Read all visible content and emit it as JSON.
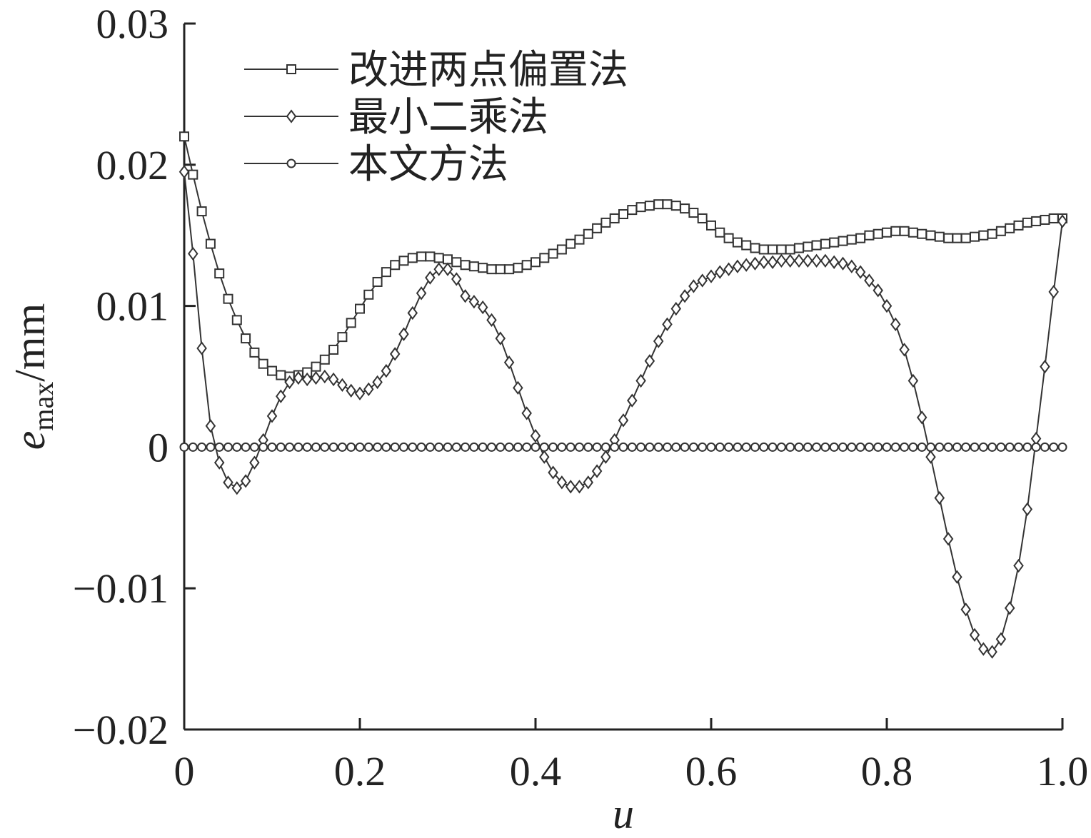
{
  "chart_data": {
    "type": "line",
    "xlabel": "u",
    "ylabel": "e",
    "ylabel_sub": "max",
    "ylabel_unit": "/mm",
    "xlim": [
      0,
      1.0
    ],
    "ylim": [
      -0.02,
      0.03
    ],
    "x_ticks": [
      "0",
      "0.2",
      "0.4",
      "0.6",
      "0.8",
      "1.0"
    ],
    "x_tick_values": [
      0,
      0.2,
      0.4,
      0.6,
      0.8,
      1.0
    ],
    "y_ticks": [
      "0.03",
      "0.02",
      "0.01",
      "0",
      "−0.01",
      "−0.02"
    ],
    "y_tick_values": [
      0.03,
      0.02,
      0.01,
      0,
      -0.01,
      -0.02
    ],
    "legend_position": "top-left",
    "series": [
      {
        "name": "改进两点偏置法",
        "marker": "square",
        "x": [
          0,
          0.01,
          0.02,
          0.03,
          0.04,
          0.05,
          0.06,
          0.07,
          0.08,
          0.09,
          0.1,
          0.11,
          0.12,
          0.13,
          0.14,
          0.15,
          0.16,
          0.17,
          0.18,
          0.19,
          0.2,
          0.21,
          0.22,
          0.23,
          0.24,
          0.25,
          0.26,
          0.27,
          0.28,
          0.29,
          0.3,
          0.31,
          0.32,
          0.33,
          0.34,
          0.35,
          0.36,
          0.37,
          0.38,
          0.39,
          0.4,
          0.41,
          0.42,
          0.43,
          0.44,
          0.45,
          0.46,
          0.47,
          0.48,
          0.49,
          0.5,
          0.51,
          0.52,
          0.53,
          0.54,
          0.55,
          0.56,
          0.57,
          0.58,
          0.59,
          0.6,
          0.61,
          0.62,
          0.63,
          0.64,
          0.65,
          0.66,
          0.67,
          0.68,
          0.69,
          0.7,
          0.71,
          0.72,
          0.73,
          0.74,
          0.75,
          0.76,
          0.77,
          0.78,
          0.79,
          0.8,
          0.81,
          0.82,
          0.83,
          0.84,
          0.85,
          0.86,
          0.87,
          0.88,
          0.89,
          0.9,
          0.91,
          0.92,
          0.93,
          0.94,
          0.95,
          0.96,
          0.97,
          0.98,
          0.99,
          1.0
        ],
        "y": [
          0.022,
          0.0193,
          0.0167,
          0.0144,
          0.0123,
          0.0105,
          0.009,
          0.0077,
          0.0067,
          0.0059,
          0.0054,
          0.0051,
          0.005,
          0.0051,
          0.0053,
          0.0057,
          0.0062,
          0.0069,
          0.0078,
          0.0088,
          0.0098,
          0.0108,
          0.0117,
          0.0124,
          0.0129,
          0.0132,
          0.0134,
          0.0135,
          0.0135,
          0.0134,
          0.0133,
          0.0131,
          0.0129,
          0.0128,
          0.0127,
          0.0126,
          0.0126,
          0.0126,
          0.0127,
          0.0129,
          0.0131,
          0.0134,
          0.0137,
          0.014,
          0.0144,
          0.0147,
          0.0151,
          0.0155,
          0.0159,
          0.0162,
          0.0165,
          0.0168,
          0.017,
          0.0171,
          0.0172,
          0.0172,
          0.0171,
          0.0169,
          0.0166,
          0.0162,
          0.0157,
          0.0152,
          0.0148,
          0.0145,
          0.0143,
          0.0141,
          0.014,
          0.014,
          0.014,
          0.014,
          0.0141,
          0.0142,
          0.0143,
          0.0144,
          0.0145,
          0.0146,
          0.0147,
          0.0148,
          0.015,
          0.0151,
          0.0152,
          0.0153,
          0.0153,
          0.0152,
          0.0151,
          0.015,
          0.0149,
          0.0148,
          0.0148,
          0.0148,
          0.0149,
          0.015,
          0.0151,
          0.0153,
          0.0155,
          0.0157,
          0.0159,
          0.016,
          0.0161,
          0.0162,
          0.0162
        ]
      },
      {
        "name": "最小二乘法",
        "marker": "diamond",
        "x": [
          0,
          0.01,
          0.02,
          0.03,
          0.04,
          0.05,
          0.06,
          0.07,
          0.08,
          0.09,
          0.1,
          0.11,
          0.12,
          0.13,
          0.14,
          0.15,
          0.16,
          0.17,
          0.18,
          0.19,
          0.2,
          0.21,
          0.22,
          0.23,
          0.24,
          0.25,
          0.26,
          0.27,
          0.28,
          0.29,
          0.3,
          0.31,
          0.32,
          0.33,
          0.34,
          0.35,
          0.36,
          0.37,
          0.38,
          0.39,
          0.4,
          0.41,
          0.42,
          0.43,
          0.44,
          0.45,
          0.46,
          0.47,
          0.48,
          0.49,
          0.5,
          0.51,
          0.52,
          0.53,
          0.54,
          0.55,
          0.56,
          0.57,
          0.58,
          0.59,
          0.6,
          0.61,
          0.62,
          0.63,
          0.64,
          0.65,
          0.66,
          0.67,
          0.68,
          0.69,
          0.7,
          0.71,
          0.72,
          0.73,
          0.74,
          0.75,
          0.76,
          0.77,
          0.78,
          0.79,
          0.8,
          0.81,
          0.82,
          0.83,
          0.84,
          0.85,
          0.86,
          0.87,
          0.88,
          0.89,
          0.9,
          0.91,
          0.92,
          0.93,
          0.94,
          0.95,
          0.96,
          0.97,
          0.98,
          0.99,
          1.0
        ],
        "y": [
          0.0195,
          0.0137,
          0.007,
          0.0015,
          -0.0011,
          -0.0025,
          -0.0029,
          -0.0024,
          -0.0011,
          0.0005,
          0.0022,
          0.0036,
          0.0046,
          0.0049,
          0.0048,
          0.0049,
          0.005,
          0.0048,
          0.0044,
          0.004,
          0.0038,
          0.0041,
          0.0046,
          0.0054,
          0.0066,
          0.008,
          0.0095,
          0.0109,
          0.012,
          0.0126,
          0.0126,
          0.0119,
          0.0107,
          0.0103,
          0.0099,
          0.009,
          0.0077,
          0.006,
          0.0042,
          0.0024,
          0.0008,
          -0.0007,
          -0.0018,
          -0.0025,
          -0.0028,
          -0.0028,
          -0.0025,
          -0.0017,
          -0.0007,
          0.0005,
          0.0019,
          0.0033,
          0.0047,
          0.0061,
          0.0075,
          0.0087,
          0.0098,
          0.0107,
          0.0114,
          0.0118,
          0.0121,
          0.0124,
          0.0126,
          0.0128,
          0.0129,
          0.013,
          0.0131,
          0.0131,
          0.0132,
          0.0132,
          0.0132,
          0.0132,
          0.0132,
          0.0132,
          0.0131,
          0.013,
          0.0128,
          0.0124,
          0.0118,
          0.0111,
          0.01,
          0.0087,
          0.0069,
          0.0047,
          0.0021,
          -0.0007,
          -0.0036,
          -0.0065,
          -0.0092,
          -0.0115,
          -0.0133,
          -0.0143,
          -0.0145,
          -0.0136,
          -0.0114,
          -0.0084,
          -0.0044,
          0.0006,
          0.0057,
          0.011,
          0.016
        ]
      },
      {
        "name": "本文方法",
        "marker": "circle",
        "x": [
          0,
          0.01,
          0.02,
          0.03,
          0.04,
          0.05,
          0.06,
          0.07,
          0.08,
          0.09,
          0.1,
          0.11,
          0.12,
          0.13,
          0.14,
          0.15,
          0.16,
          0.17,
          0.18,
          0.19,
          0.2,
          0.21,
          0.22,
          0.23,
          0.24,
          0.25,
          0.26,
          0.27,
          0.28,
          0.29,
          0.3,
          0.31,
          0.32,
          0.33,
          0.34,
          0.35,
          0.36,
          0.37,
          0.38,
          0.39,
          0.4,
          0.41,
          0.42,
          0.43,
          0.44,
          0.45,
          0.46,
          0.47,
          0.48,
          0.49,
          0.5,
          0.51,
          0.52,
          0.53,
          0.54,
          0.55,
          0.56,
          0.57,
          0.58,
          0.59,
          0.6,
          0.61,
          0.62,
          0.63,
          0.64,
          0.65,
          0.66,
          0.67,
          0.68,
          0.69,
          0.7,
          0.71,
          0.72,
          0.73,
          0.74,
          0.75,
          0.76,
          0.77,
          0.78,
          0.79,
          0.8,
          0.81,
          0.82,
          0.83,
          0.84,
          0.85,
          0.86,
          0.87,
          0.88,
          0.89,
          0.9,
          0.91,
          0.92,
          0.93,
          0.94,
          0.95,
          0.96,
          0.97,
          0.98,
          0.99,
          1.0
        ],
        "y": [
          0,
          0,
          0,
          0,
          0,
          0,
          0,
          0,
          0,
          0,
          0,
          0,
          0,
          0,
          0,
          0,
          0,
          0,
          0,
          0,
          0,
          0,
          0,
          0,
          0,
          0,
          0,
          0,
          0,
          0,
          0,
          0,
          0,
          0,
          0,
          0,
          0,
          0,
          0,
          0,
          0,
          0,
          0,
          0,
          0,
          0,
          0,
          0,
          0,
          0,
          0,
          0,
          0,
          0,
          0,
          0,
          0,
          0,
          0,
          0,
          0,
          0,
          0,
          0,
          0,
          0,
          0,
          0,
          0,
          0,
          0,
          0,
          0,
          0,
          0,
          0,
          0,
          0,
          0,
          0,
          0,
          0,
          0,
          0,
          0,
          0,
          0,
          0,
          0,
          0,
          0,
          0,
          0,
          0,
          0,
          0,
          0,
          0,
          0,
          0,
          0
        ]
      }
    ]
  }
}
